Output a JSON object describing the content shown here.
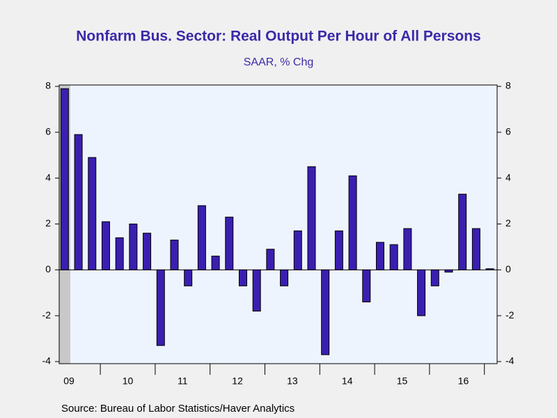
{
  "chart_data": {
    "type": "bar",
    "title": "Nonfarm Bus. Sector: Real Output Per Hour of All Persons",
    "subtitle": "SAAR, % Chg",
    "source": "Source:  Bureau of Labor Statistics/Haver Analytics",
    "categories": [
      "09",
      null,
      null,
      "10",
      null,
      null,
      null,
      "11",
      null,
      null,
      null,
      "12",
      null,
      null,
      null,
      "13",
      null,
      null,
      null,
      "14",
      null,
      null,
      null,
      "15",
      null,
      null,
      null,
      "16",
      null,
      null,
      null,
      null
    ],
    "values": [
      7.9,
      5.9,
      4.9,
      2.1,
      1.4,
      2.0,
      1.6,
      -3.3,
      1.3,
      -0.7,
      2.8,
      0.6,
      2.3,
      -0.7,
      -1.8,
      0.9,
      -0.7,
      1.7,
      4.5,
      -3.7,
      1.7,
      4.1,
      -1.4,
      1.2,
      1.1,
      1.8,
      -2.0,
      -0.7,
      -0.1,
      3.3,
      1.8,
      0.05
    ],
    "color": "#3a1fb0",
    "ylim": [
      -4,
      8
    ],
    "yticks": [
      -4,
      -2,
      0,
      2,
      4,
      6,
      8
    ],
    "y2lim": [
      -4,
      8
    ],
    "y2ticks": [
      -4,
      -2,
      0,
      2,
      4,
      6,
      8
    ]
  }
}
